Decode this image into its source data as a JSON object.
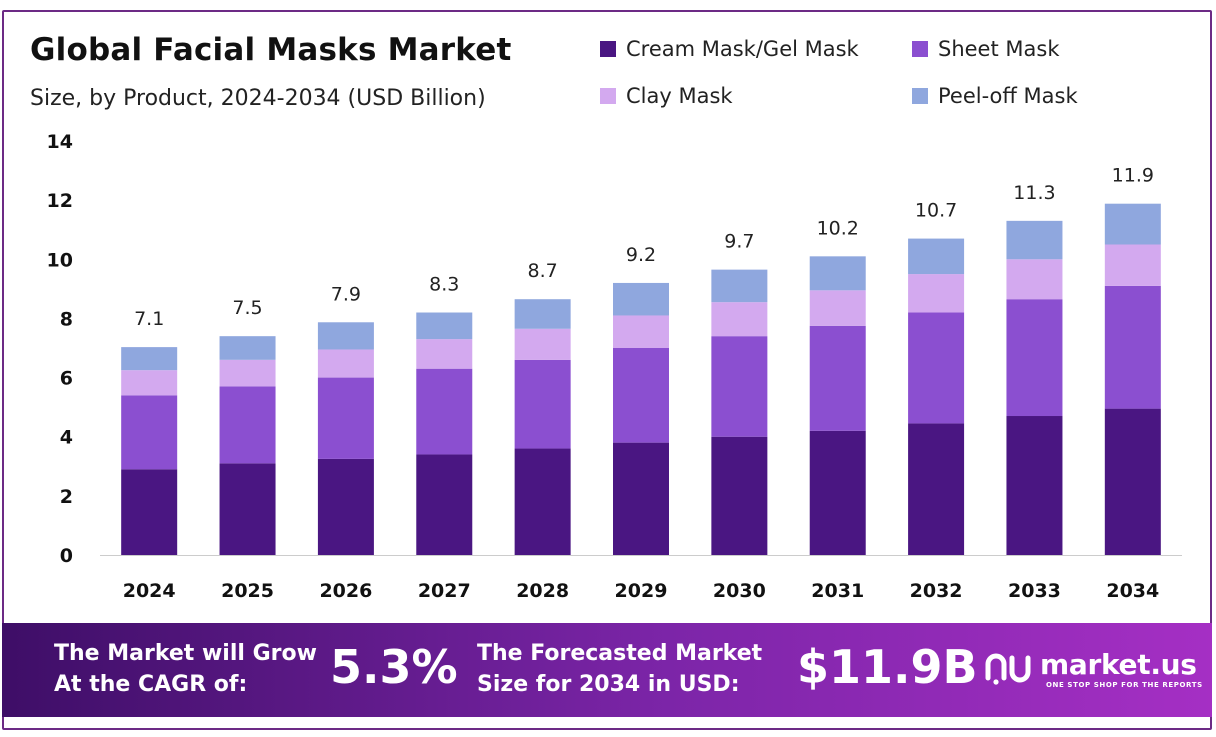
{
  "chart_data": {
    "type": "bar",
    "stacked": true,
    "title": "Global Facial Masks Market",
    "subtitle": "Size, by Product, 2024-2034 (USD Billion)",
    "categories": [
      "2024",
      "2025",
      "2026",
      "2027",
      "2028",
      "2029",
      "2030",
      "2031",
      "2032",
      "2033",
      "2034"
    ],
    "series": [
      {
        "name": "Cream Mask/Gel Mask",
        "color": "#4a1682",
        "values": [
          2.9,
          3.1,
          3.25,
          3.4,
          3.6,
          3.8,
          4.0,
          4.2,
          4.45,
          4.7,
          4.95
        ]
      },
      {
        "name": "Sheet Mask",
        "color": "#8b4fd0",
        "values": [
          2.5,
          2.6,
          2.75,
          2.9,
          3.0,
          3.2,
          3.4,
          3.55,
          3.75,
          3.95,
          4.15
        ]
      },
      {
        "name": "Clay Mask",
        "color": "#d3a9ef",
        "values": [
          0.85,
          0.9,
          0.95,
          1.0,
          1.05,
          1.1,
          1.15,
          1.2,
          1.3,
          1.35,
          1.4
        ]
      },
      {
        "name": "Peel-off Mask",
        "color": "#8fa7de",
        "values": [
          0.78,
          0.8,
          0.92,
          0.9,
          1.0,
          1.1,
          1.1,
          1.15,
          1.2,
          1.3,
          1.38
        ]
      }
    ],
    "totals": [
      "7.1",
      "7.5",
      "7.9",
      "8.3",
      "8.7",
      "9.2",
      "9.7",
      "10.2",
      "10.7",
      "11.3",
      "11.9"
    ],
    "ylim": [
      0,
      14
    ],
    "yticks": [
      0,
      2,
      4,
      6,
      8,
      10,
      12,
      14
    ],
    "grid": false,
    "legend_position": "top-right"
  },
  "footer": {
    "cagr_label_line1": "The Market will Grow",
    "cagr_label_line2": "At the CAGR of:",
    "cagr_value": "5.3%",
    "forecast_label_line1": "The Forecasted Market",
    "forecast_label_line2": "Size for 2034 in USD:",
    "forecast_value": "$11.9B"
  },
  "brand": {
    "name": "market.us",
    "tagline": "ONE STOP SHOP FOR THE REPORTS",
    "logo_icon": "market-us-logo-icon"
  }
}
